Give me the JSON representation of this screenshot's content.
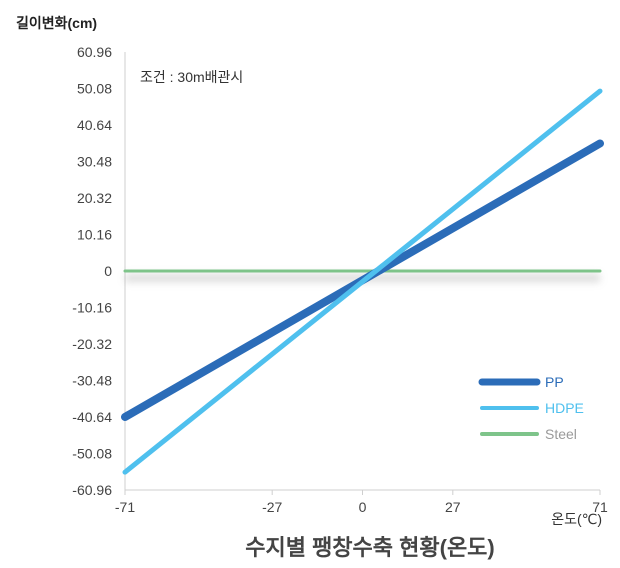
{
  "chart_data": {
    "type": "line",
    "title": "수지별 팽창수축 현황(온도)",
    "xlabel": "온도(℃)",
    "ylabel": "길이변화(cm)",
    "annotation": "조건 : 30m배관시",
    "x_ticks": [
      "-71",
      "-27",
      "0",
      "27",
      "71"
    ],
    "x_tick_values": [
      -71,
      -27,
      0,
      27,
      71
    ],
    "y_ticks": [
      "60.96",
      "50.08",
      "40.64",
      "30.48",
      "20.32",
      "10.16",
      "0",
      "-10.16",
      "-20.32",
      "-30.48",
      "-40.64",
      "-50.08",
      "-60.96"
    ],
    "xlim": [
      -71,
      71
    ],
    "ylim": [
      -60.96,
      60.96
    ],
    "legend_position": "bottom-right",
    "series": [
      {
        "name": "PP",
        "color": "#2b6cb8",
        "x": [
          -71,
          71
        ],
        "y": [
          -40.64,
          35.5
        ]
      },
      {
        "name": "HDPE",
        "color": "#4fc0ee",
        "x": [
          -71,
          71
        ],
        "y": [
          -56.0,
          50.08
        ]
      },
      {
        "name": "Steel",
        "color": "#7ec48a",
        "x": [
          -71,
          71
        ],
        "y": [
          0,
          0
        ]
      }
    ]
  }
}
